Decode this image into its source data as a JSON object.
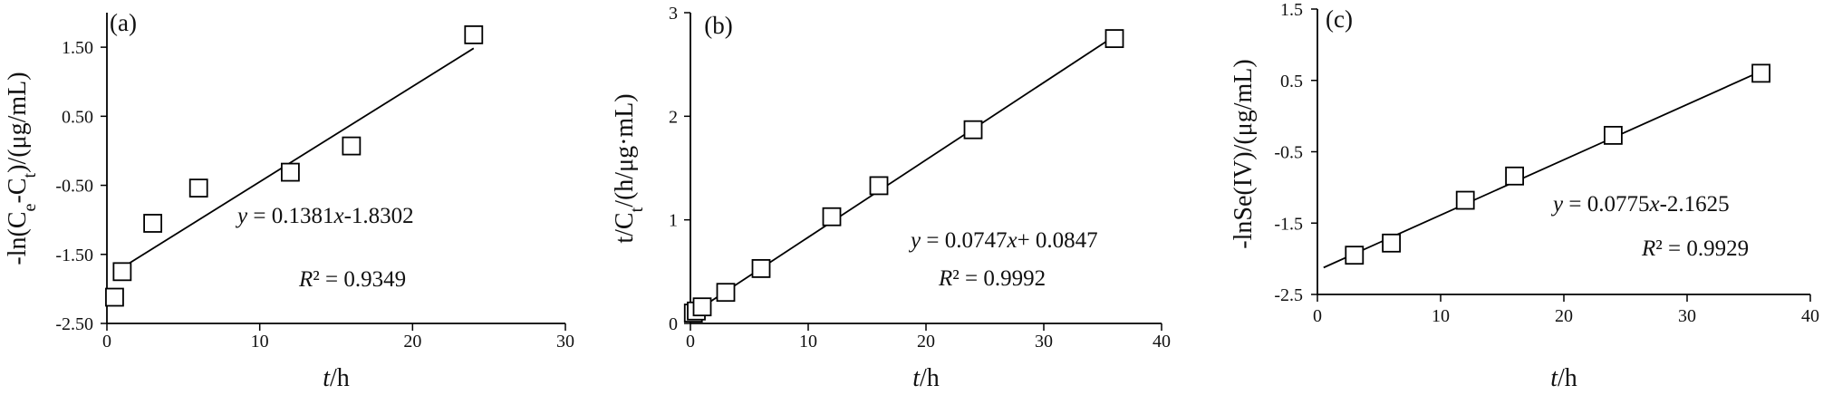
{
  "chart_data": [
    {
      "type": "scatter",
      "panel_label": "(a)",
      "xlabel": "t/h",
      "ylabel": "-ln(Ce-Ct)/(μg/mL)",
      "xlim": [
        0,
        30
      ],
      "ylim": [
        -2.5,
        2.0
      ],
      "xticks": [
        0,
        10,
        20,
        30
      ],
      "yticks": [
        -2.5,
        -1.5,
        -0.5,
        0.5,
        1.5
      ],
      "xtick_labels": [
        "0",
        "10",
        "20",
        "30"
      ],
      "ytick_labels": [
        "-2.50",
        "-1.50",
        "-0.50",
        "0.50",
        "1.50"
      ],
      "grid": false,
      "points": [
        {
          "x": 0.5,
          "y": -2.12
        },
        {
          "x": 1,
          "y": -1.75
        },
        {
          "x": 3,
          "y": -1.05
        },
        {
          "x": 6,
          "y": -0.54
        },
        {
          "x": 12,
          "y": -0.31
        },
        {
          "x": 16,
          "y": 0.07
        },
        {
          "x": 24,
          "y": 1.68
        }
      ],
      "fit": {
        "slope": 0.1381,
        "intercept": -1.8302,
        "x_range": [
          0.5,
          24
        ]
      },
      "equation": "y = 0.1381x-1.8302",
      "r2": "R² = 0.9349"
    },
    {
      "type": "scatter",
      "panel_label": "(b)",
      "xlabel": "t/h",
      "ylabel": "t/Ct/(h/μg·mL)",
      "xlim": [
        0,
        40
      ],
      "ylim": [
        0,
        3
      ],
      "xticks": [
        0,
        10,
        20,
        30,
        40
      ],
      "yticks": [
        0,
        1,
        2,
        3
      ],
      "xtick_labels": [
        "0",
        "10",
        "20",
        "30",
        "40"
      ],
      "ytick_labels": [
        "0",
        "1",
        "2",
        "3"
      ],
      "grid": false,
      "points": [
        {
          "x": 0.25,
          "y": 0.1
        },
        {
          "x": 0.5,
          "y": 0.12
        },
        {
          "x": 1,
          "y": 0.16
        },
        {
          "x": 3,
          "y": 0.3
        },
        {
          "x": 6,
          "y": 0.53
        },
        {
          "x": 12,
          "y": 1.03
        },
        {
          "x": 16,
          "y": 1.33
        },
        {
          "x": 24,
          "y": 1.87
        },
        {
          "x": 36,
          "y": 2.75
        }
      ],
      "fit": {
        "slope": 0.0747,
        "intercept": 0.0847,
        "x_range": [
          0,
          36
        ]
      },
      "equation": "y = 0.0747x+ 0.0847",
      "r2": "R² = 0.9992"
    },
    {
      "type": "scatter",
      "panel_label": "(c)",
      "xlabel": "t/h",
      "ylabel": "-lnSe(IV)/(μg/mL)",
      "xlim": [
        0,
        40
      ],
      "ylim": [
        -2.5,
        1.5
      ],
      "xticks": [
        0,
        10,
        20,
        30,
        40
      ],
      "yticks": [
        -2.5,
        -1.5,
        -0.5,
        0.5,
        1.5
      ],
      "xtick_labels": [
        "0",
        "10",
        "20",
        "30",
        "40"
      ],
      "ytick_labels": [
        "-2.5",
        "-1.5",
        "-0.5",
        "0.5",
        "1.5"
      ],
      "grid": false,
      "points": [
        {
          "x": 3,
          "y": -1.95
        },
        {
          "x": 6,
          "y": -1.78
        },
        {
          "x": 12,
          "y": -1.18
        },
        {
          "x": 16,
          "y": -0.84
        },
        {
          "x": 24,
          "y": -0.27
        },
        {
          "x": 36,
          "y": 0.6
        }
      ],
      "fit": {
        "slope": 0.0775,
        "intercept": -2.1625,
        "x_range": [
          0.5,
          36
        ]
      },
      "equation": "y = 0.0775x-2.1625",
      "r2": "R² = 0.9929"
    }
  ]
}
